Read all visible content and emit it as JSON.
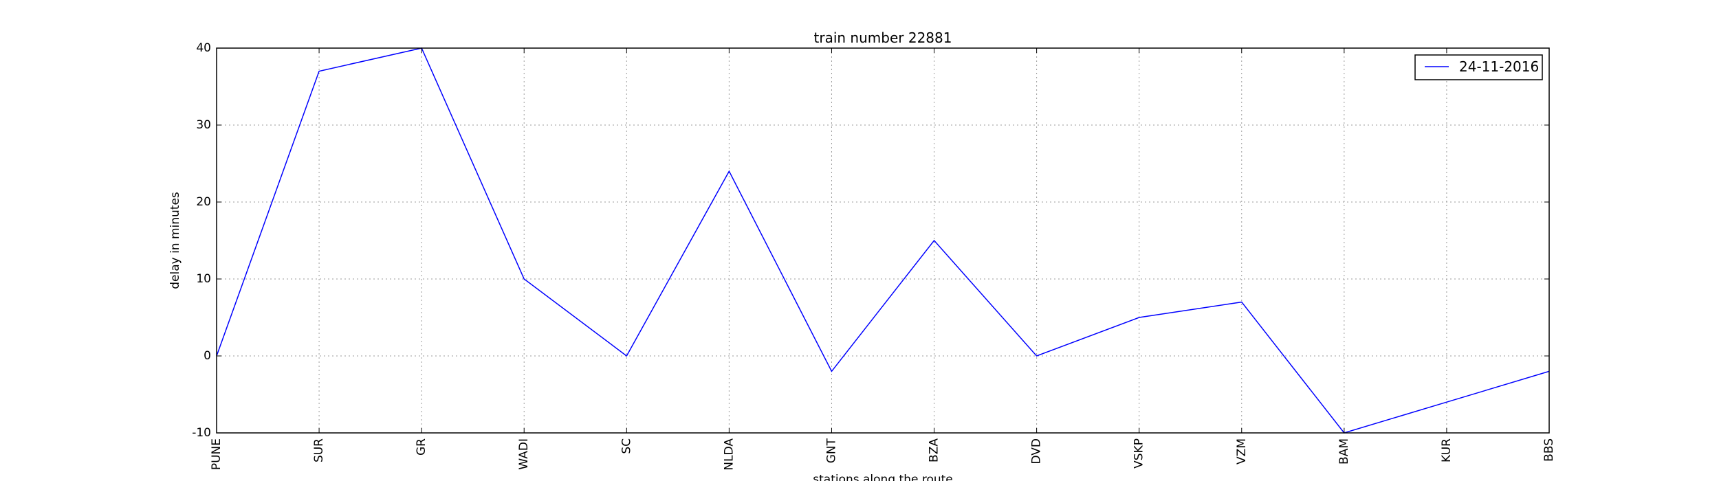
{
  "chart_data": {
    "type": "line",
    "title": "train number 22881",
    "xlabel": "stations along the route",
    "ylabel": "delay in minutes",
    "categories": [
      "PUNE",
      "SUR",
      "GR",
      "WADI",
      "SC",
      "NLDA",
      "GNT",
      "BZA",
      "DVD",
      "VSKP",
      "VZM",
      "BAM",
      "KUR",
      "BBS"
    ],
    "series": [
      {
        "name": "24-11-2016",
        "color": "#0000ff",
        "values": [
          0,
          37,
          40,
          10,
          0,
          24,
          -2,
          15,
          0,
          5,
          7,
          -10,
          -6,
          -2
        ]
      }
    ],
    "ylim": [
      -10,
      40
    ],
    "yticks": [
      -10,
      0,
      10,
      20,
      30,
      40
    ],
    "grid": true,
    "legend_position": "top-right"
  }
}
